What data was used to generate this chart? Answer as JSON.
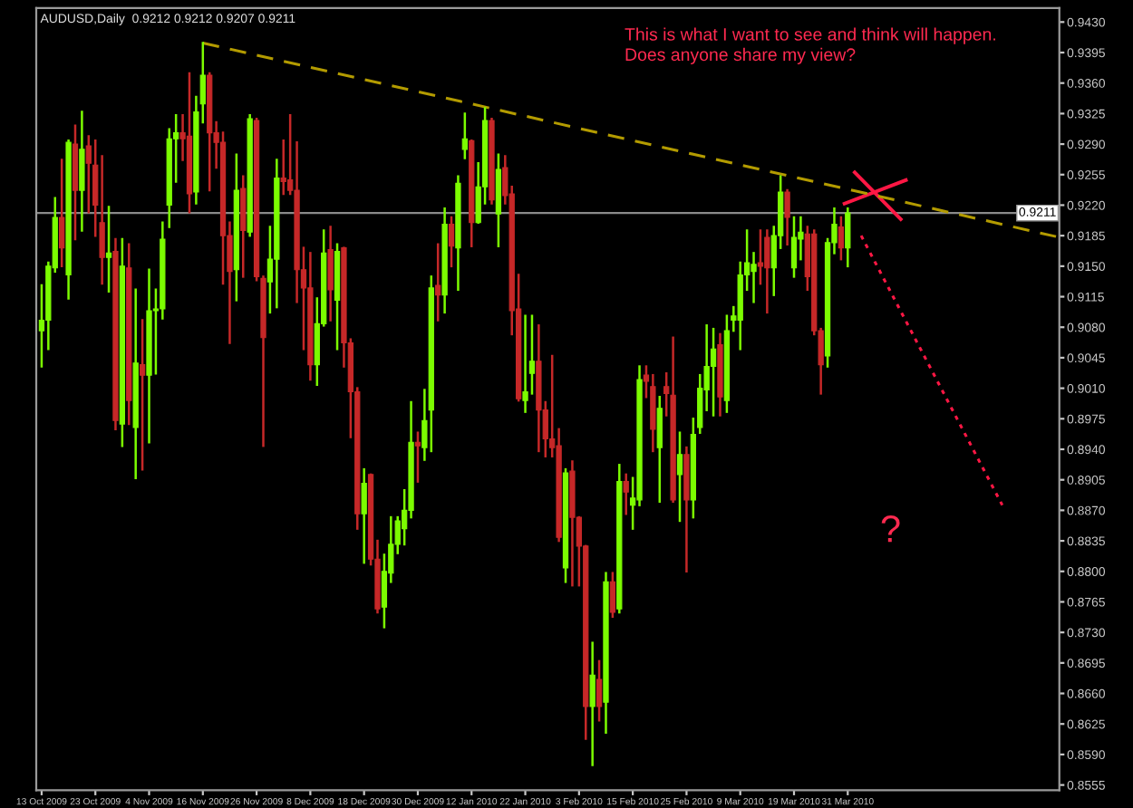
{
  "chart_data": {
    "type": "candlestick",
    "title": "AUDUSD,Daily  0.9212 0.9212 0.9207 0.9211",
    "annotations": [
      "This is what I want to see and think will happen.\nDoes anyone share my view?",
      "?"
    ],
    "categories": [
      "13 Oct 2009",
      null,
      null,
      null,
      null,
      null,
      null,
      null,
      "23 Oct 2009",
      null,
      null,
      null,
      null,
      null,
      null,
      null,
      "4 Nov 2009",
      null,
      null,
      null,
      null,
      null,
      null,
      null,
      "16 Nov 2009",
      null,
      null,
      null,
      null,
      null,
      null,
      null,
      "26 Nov 2009",
      null,
      null,
      null,
      null,
      null,
      null,
      null,
      "8 Dec 2009",
      null,
      null,
      null,
      null,
      null,
      null,
      null,
      "18 Dec 2009",
      null,
      null,
      null,
      null,
      null,
      null,
      null,
      "30 Dec 2009",
      null,
      null,
      null,
      null,
      null,
      null,
      null,
      "12 Jan 2010",
      null,
      null,
      null,
      null,
      null,
      null,
      null,
      "22 Jan 2010",
      null,
      null,
      null,
      null,
      null,
      null,
      null,
      "3 Feb 2010",
      null,
      null,
      null,
      null,
      null,
      null,
      null,
      "15 Feb 2010",
      null,
      null,
      null,
      null,
      null,
      null,
      null,
      "25 Feb 2010",
      null,
      null,
      null,
      null,
      null,
      null,
      null,
      "9 Mar 2010",
      null,
      null,
      null,
      null,
      null,
      null,
      null,
      "19 Mar 2010",
      null,
      null,
      null,
      null,
      null,
      null,
      null,
      "31 Mar 2010",
      null,
      null,
      null,
      null,
      null,
      null,
      null,
      null,
      null,
      null,
      null,
      null,
      null,
      null,
      null,
      null,
      null,
      null,
      null,
      null,
      null,
      null,
      null,
      null,
      null,
      null,
      null,
      null,
      null,
      null,
      null
    ],
    "colors": [
      "#7cfc00",
      "#7cfc00",
      "#7cfc00",
      "#c62828",
      "#7cfc00",
      "#c62828",
      "#7cfc00",
      "#c62828",
      "#c62828",
      "#c62828",
      "#7cfc00",
      "#c62828",
      "#7cfc00",
      "#c62828",
      "#7cfc00",
      "#c62828",
      "#7cfc00",
      "#7cfc00",
      "#7cfc00",
      "#7cfc00",
      "#7cfc00",
      "#c62828",
      "#c62828",
      "#7cfc00",
      "#7cfc00",
      "#c62828",
      "#c62828",
      "#c62828",
      "#c62828",
      "#7cfc00",
      "#c62828",
      "#7cfc00",
      "#c62828",
      "#c62828",
      "#7cfc00",
      "#7cfc00",
      "#c62828",
      "#c62828",
      "#c62828",
      "#c62828",
      "#c62828",
      "#7cfc00",
      "#7cfc00",
      "#c62828",
      "#7cfc00",
      "#c62828",
      "#c62828",
      "#c62828",
      "#7cfc00",
      "#c62828",
      "#c62828",
      "#7cfc00",
      "#7cfc00",
      "#7cfc00",
      "#7cfc00",
      "#7cfc00",
      "#c62828",
      "#7cfc00",
      "#7cfc00",
      "#c62828",
      "#7cfc00",
      "#c62828",
      "#7cfc00",
      "#7cfc00",
      "#c62828",
      "#7cfc00",
      "#7cfc00",
      "#c62828",
      "#7cfc00",
      "#c62828",
      "#c62828",
      "#c62828",
      "#7cfc00",
      "#7cfc00",
      "#c62828",
      "#c62828",
      "#c62828",
      "#c62828",
      "#7cfc00",
      "#c62828",
      "#c62828",
      "#c62828",
      "#7cfc00",
      "#c62828",
      "#7cfc00",
      "#c62828",
      "#7cfc00",
      "#c62828",
      "#7cfc00",
      "#7cfc00",
      "#c62828",
      "#c62828",
      "#7cfc00",
      "#c62828",
      "#c62828",
      "#7cfc00",
      "#c62828",
      "#7cfc00",
      "#7cfc00",
      "#7cfc00",
      "#7cfc00",
      "#c62828",
      "#7cfc00",
      "#7cfc00",
      "#7cfc00",
      "#7cfc00",
      "#7cfc00",
      "#c62828",
      "#c62828",
      "#7cfc00",
      "#7cfc00",
      "#c62828",
      "#7cfc00",
      "#7cfc00",
      "#c62828",
      "#c62828",
      "#c62828",
      "#7cfc00",
      "#7cfc00",
      "#c62828",
      "#7cfc00",
      null,
      null,
      null,
      null,
      null,
      null,
      null,
      null,
      null,
      null,
      null,
      null,
      null,
      null,
      null,
      null,
      null,
      null,
      null,
      null,
      null,
      null,
      null,
      null,
      null,
      null,
      null,
      null,
      null,
      null,
      null
    ],
    "ohlc": [
      [
        0.9076,
        0.9128,
        0.9035,
        0.9088
      ],
      [
        0.9088,
        0.9154,
        0.9055,
        0.915
      ],
      [
        0.9148,
        0.9228,
        0.9144,
        0.9206
      ],
      [
        0.9206,
        0.9272,
        0.915,
        0.9171
      ],
      [
        0.914,
        0.9294,
        0.9113,
        0.9292
      ],
      [
        0.929,
        0.9311,
        0.9181,
        0.9237
      ],
      [
        0.9237,
        0.9327,
        0.9191,
        0.9284
      ],
      [
        0.9288,
        0.9299,
        0.9212,
        0.9268
      ],
      [
        0.9266,
        0.9294,
        0.9185,
        0.922
      ],
      [
        0.92,
        0.9276,
        0.913,
        0.916
      ],
      [
        0.916,
        0.9218,
        0.9121,
        0.9165
      ],
      [
        0.9167,
        0.9181,
        0.8963,
        0.8973
      ],
      [
        0.8969,
        0.9181,
        0.8944,
        0.915
      ],
      [
        0.9148,
        0.9175,
        0.8969,
        0.8996
      ],
      [
        0.8965,
        0.9123,
        0.8907,
        0.9039
      ],
      [
        0.9037,
        0.9088,
        0.8917,
        0.9025
      ],
      [
        0.9025,
        0.9146,
        0.8948,
        0.9099
      ],
      [
        0.9099,
        0.9123,
        0.9027,
        0.9101
      ],
      [
        0.9101,
        0.92,
        0.909,
        0.9181
      ],
      [
        0.922,
        0.9307,
        0.9195,
        0.9296
      ],
      [
        0.9296,
        0.9323,
        0.9247,
        0.9303
      ],
      [
        0.9303,
        0.9323,
        0.9272,
        0.9296
      ],
      [
        0.9299,
        0.9371,
        0.9212,
        0.9233
      ],
      [
        0.9235,
        0.9344,
        0.9222,
        0.9327
      ],
      [
        0.9336,
        0.9406,
        0.9315,
        0.9369
      ],
      [
        0.9369,
        0.9371,
        0.9237,
        0.9303
      ],
      [
        0.9303,
        0.9315,
        0.9263,
        0.9292
      ],
      [
        0.9292,
        0.9303,
        0.913,
        0.9185
      ],
      [
        0.9185,
        0.92,
        0.9062,
        0.9144
      ],
      [
        0.9146,
        0.9278,
        0.9111,
        0.9237
      ],
      [
        0.9239,
        0.9253,
        0.9138,
        0.9191
      ],
      [
        0.9189,
        0.9323,
        0.9185,
        0.9319
      ],
      [
        0.9317,
        0.9319,
        0.9134,
        0.9138
      ],
      [
        0.9136,
        0.9138,
        0.8944,
        0.9068
      ],
      [
        0.9132,
        0.9195,
        0.9097,
        0.9158
      ],
      [
        0.9158,
        0.9272,
        0.9103,
        0.9251
      ],
      [
        0.9251,
        0.9294,
        0.9233,
        0.9247
      ],
      [
        0.9249,
        0.9323,
        0.9233,
        0.9237
      ],
      [
        0.9237,
        0.9292,
        0.9109,
        0.9146
      ],
      [
        0.9146,
        0.9171,
        0.9055,
        0.9125
      ],
      [
        0.9125,
        0.9165,
        0.902,
        0.9037
      ],
      [
        0.9037,
        0.9113,
        0.9014,
        0.9084
      ],
      [
        0.9084,
        0.9191,
        0.9082,
        0.9165
      ],
      [
        0.9169,
        0.9195,
        0.9088,
        0.9123
      ],
      [
        0.9111,
        0.9175,
        0.9055,
        0.9167
      ],
      [
        0.9171,
        0.9171,
        0.9035,
        0.9062
      ],
      [
        0.9062,
        0.9066,
        0.8954,
        0.9006
      ],
      [
        0.9006,
        0.901,
        0.8849,
        0.8866
      ],
      [
        0.8866,
        0.8917,
        0.881,
        0.8901
      ],
      [
        0.8911,
        0.8911,
        0.8808,
        0.8814
      ],
      [
        0.8814,
        0.8835,
        0.8753,
        0.8757
      ],
      [
        0.8759,
        0.8819,
        0.8736,
        0.88
      ],
      [
        0.8798,
        0.8862,
        0.8788,
        0.8831
      ],
      [
        0.8831,
        0.8862,
        0.8821,
        0.8858
      ],
      [
        0.8849,
        0.8893,
        0.8831,
        0.887
      ],
      [
        0.887,
        0.8994,
        0.8862,
        0.8948
      ],
      [
        0.8948,
        0.8959,
        0.8903,
        0.8944
      ],
      [
        0.8942,
        0.9008,
        0.8928,
        0.8973
      ],
      [
        0.8985,
        0.9138,
        0.8938,
        0.9125
      ],
      [
        0.9128,
        0.9175,
        0.9088,
        0.9117
      ],
      [
        0.9117,
        0.9216,
        0.9097,
        0.9198
      ],
      [
        0.9198,
        0.9206,
        0.915,
        0.9173
      ],
      [
        0.9171,
        0.9253,
        0.9123,
        0.9245
      ],
      [
        0.9284,
        0.9325,
        0.9274,
        0.9296
      ],
      [
        0.9294,
        0.9294,
        0.9173,
        0.92
      ],
      [
        0.92,
        0.9268,
        0.92,
        0.9241
      ],
      [
        0.9241,
        0.9331,
        0.9222,
        0.9317
      ],
      [
        0.9317,
        0.9319,
        0.9222,
        0.9226
      ],
      [
        0.921,
        0.9278,
        0.9173,
        0.9261
      ],
      [
        0.9263,
        0.9276,
        0.9222,
        0.9231
      ],
      [
        0.9233,
        0.9241,
        0.9072,
        0.9099
      ],
      [
        0.9101,
        0.914,
        0.8996,
        0.8998
      ],
      [
        0.8996,
        0.9093,
        0.8983,
        0.9006
      ],
      [
        0.9027,
        0.9093,
        0.9004,
        0.9041
      ],
      [
        0.9041,
        0.9082,
        0.8938,
        0.8985
      ],
      [
        0.8985,
        0.8994,
        0.8932,
        0.8952
      ],
      [
        0.8952,
        0.9047,
        0.8932,
        0.8942
      ],
      [
        0.8944,
        0.8963,
        0.8835,
        0.8839
      ],
      [
        0.8804,
        0.8917,
        0.8788,
        0.8913
      ],
      [
        0.8915,
        0.8926,
        0.8784,
        0.8862
      ],
      [
        0.8862,
        0.8862,
        0.8784,
        0.8829
      ],
      [
        0.8829,
        0.8829,
        0.8608,
        0.8645
      ],
      [
        0.8645,
        0.8718,
        0.8578,
        0.8681
      ],
      [
        0.8676,
        0.8697,
        0.8629,
        0.8645
      ],
      [
        0.865,
        0.8798,
        0.8615,
        0.8788
      ],
      [
        0.8788,
        0.8798,
        0.8748,
        0.8753
      ],
      [
        0.8757,
        0.8922,
        0.8753,
        0.8903
      ],
      [
        0.8903,
        0.8911,
        0.8866,
        0.8891
      ],
      [
        0.8876,
        0.8907,
        0.8849,
        0.8884
      ],
      [
        0.8882,
        0.9035,
        0.8876,
        0.902
      ],
      [
        0.9025,
        0.9035,
        0.9,
        0.9018
      ],
      [
        0.9012,
        0.9025,
        0.8938,
        0.8963
      ],
      [
        0.8942,
        0.9,
        0.888,
        0.8987
      ],
      [
        0.9012,
        0.9027,
        0.8979,
        0.9004
      ],
      [
        0.9002,
        0.9068,
        0.888,
        0.8882
      ],
      [
        0.8911,
        0.8959,
        0.8858,
        0.8934
      ],
      [
        0.8934,
        0.8942,
        0.88,
        0.8882
      ],
      [
        0.8882,
        0.8975,
        0.8862,
        0.8957
      ],
      [
        0.8965,
        0.9025,
        0.8959,
        0.901
      ],
      [
        0.9008,
        0.9082,
        0.8985,
        0.9035
      ],
      [
        0.9035,
        0.9078,
        0.8979,
        0.9055
      ],
      [
        0.906,
        0.9072,
        0.8979,
        0.9
      ],
      [
        0.8996,
        0.9093,
        0.8983,
        0.9076
      ],
      [
        0.9088,
        0.9103,
        0.9076,
        0.9093
      ],
      [
        0.9088,
        0.9154,
        0.9055,
        0.914
      ],
      [
        0.914,
        0.9191,
        0.9123,
        0.9154
      ],
      [
        0.9144,
        0.9165,
        0.9109,
        0.9152
      ],
      [
        0.9154,
        0.9191,
        0.913,
        0.915
      ],
      [
        0.9183,
        0.9191,
        0.9097,
        0.9148
      ],
      [
        0.9148,
        0.9195,
        0.9117,
        0.9185
      ],
      [
        0.9185,
        0.9253,
        0.9171,
        0.9235
      ],
      [
        0.9235,
        0.9237,
        0.9175,
        0.9206
      ],
      [
        0.9148,
        0.9206,
        0.9138,
        0.9183
      ],
      [
        0.9181,
        0.9206,
        0.9158,
        0.9189
      ],
      [
        0.9187,
        0.9195,
        0.9123,
        0.9138
      ],
      [
        0.9187,
        0.9191,
        0.9072,
        0.9076
      ],
      [
        0.9076,
        0.9078,
        0.9004,
        0.9037
      ],
      [
        0.9047,
        0.9181,
        0.9035,
        0.9177
      ],
      [
        0.9177,
        0.9216,
        0.9165,
        0.9198
      ],
      [
        0.9195,
        0.9206,
        0.9158,
        0.9171
      ],
      [
        0.9171,
        0.9216,
        0.915,
        0.9211
      ],
      null,
      null,
      null,
      null,
      null,
      null,
      null,
      null,
      null,
      null,
      null,
      null,
      null,
      null,
      null,
      null,
      null,
      null,
      null,
      null,
      null,
      null,
      null,
      null,
      null,
      null,
      null,
      null,
      null,
      null,
      null
    ],
    "series": [
      {
        "type": "line",
        "values": [
          null,
          null,
          null,
          null,
          null,
          null,
          null,
          null,
          null,
          null,
          null,
          null,
          null,
          null,
          null,
          null,
          null,
          null,
          null,
          null,
          null,
          null,
          null,
          null,
          0.9406,
          null,
          null,
          null,
          null,
          null,
          null,
          null,
          null,
          null,
          null,
          null,
          null,
          null,
          null,
          null,
          null,
          null,
          null,
          null,
          null,
          null,
          null,
          null,
          null,
          null,
          null,
          null,
          null,
          null,
          null,
          null,
          null,
          null,
          null,
          null,
          null,
          null,
          null,
          null,
          null,
          null,
          null,
          null,
          null,
          null,
          null,
          null,
          null,
          null,
          null,
          null,
          null,
          null,
          null,
          null,
          null,
          null,
          null,
          null,
          null,
          null,
          null,
          null,
          null,
          null,
          null,
          null,
          null,
          null,
          null,
          null,
          null,
          null,
          null,
          null,
          null,
          null,
          null,
          null,
          null,
          null,
          null,
          null,
          null,
          null,
          null,
          null,
          null,
          null,
          null,
          null,
          null,
          null,
          null,
          null,
          null,
          null,
          null,
          null,
          null,
          null,
          null,
          null,
          null,
          null,
          null,
          null,
          null,
          null,
          null,
          null,
          null,
          null,
          null,
          null,
          null,
          null,
          null,
          null,
          null,
          null,
          null,
          null,
          null,
          null,
          null,
          0.9184
        ],
        "color": "#b39b00",
        "line_style": "dashed"
      },
      {
        "type": "line",
        "values": [
          null,
          null,
          null,
          null,
          null,
          null,
          null,
          null,
          null,
          null,
          null,
          null,
          null,
          null,
          null,
          null,
          null,
          null,
          null,
          null,
          null,
          null,
          null,
          null,
          null,
          null,
          null,
          null,
          null,
          null,
          null,
          null,
          null,
          null,
          null,
          null,
          null,
          null,
          null,
          null,
          null,
          null,
          null,
          null,
          null,
          null,
          null,
          null,
          null,
          null,
          null,
          null,
          null,
          null,
          null,
          null,
          null,
          null,
          null,
          null,
          null,
          null,
          null,
          null,
          null,
          null,
          null,
          null,
          null,
          null,
          null,
          null,
          null,
          null,
          null,
          null,
          null,
          null,
          null,
          null,
          null,
          null,
          null,
          null,
          null,
          null,
          null,
          null,
          null,
          null,
          null,
          null,
          null,
          null,
          null,
          null,
          null,
          null,
          null,
          null,
          null,
          null,
          null,
          null,
          null,
          null,
          null,
          null,
          null,
          null,
          null,
          null,
          null,
          null,
          null,
          null,
          null,
          null,
          null,
          null,
          null,
          null,
          0.9185,
          null,
          null,
          null,
          null,
          null,
          null,
          null,
          null,
          null,
          null,
          null,
          null,
          null,
          null,
          null,
          null,
          null,
          null,
          null,
          null,
          0.8876,
          null,
          null,
          null,
          null,
          null,
          null,
          null,
          null
        ],
        "color": "#ff1744",
        "line_style": "dotted"
      }
    ],
    "ref_lines": [
      {
        "axis": "y",
        "value": 0.9211,
        "label": "0.9211",
        "color": "#8a8a8a",
        "line_style": "solid"
      }
    ],
    "ylim": [
      0.8549,
      0.9446
    ],
    "yticks": [
      {
        "value": 0.943,
        "label": "0.9430"
      },
      0.9395,
      {
        "value": 0.936,
        "label": "0.9360"
      },
      0.9325,
      {
        "value": 0.929,
        "label": "0.9290"
      },
      0.9255,
      {
        "value": 0.922,
        "label": "0.9220"
      },
      0.9185,
      {
        "value": 0.915,
        "label": "0.9150"
      },
      0.9115,
      {
        "value": 0.908,
        "label": "0.9080"
      },
      0.9045,
      {
        "value": 0.901,
        "label": "0.9010"
      },
      0.8975,
      {
        "value": 0.894,
        "label": "0.8940"
      },
      0.8905,
      {
        "value": 0.887,
        "label": "0.8870"
      },
      0.8835,
      {
        "value": 0.88,
        "label": "0.8800"
      },
      0.8765,
      {
        "value": 0.873,
        "label": "0.8730"
      },
      0.8695,
      {
        "value": 0.866,
        "label": "0.8660"
      },
      0.8625,
      {
        "value": 0.859,
        "label": "0.8590"
      },
      0.8555
    ],
    "grid": false,
    "legend": false
  }
}
